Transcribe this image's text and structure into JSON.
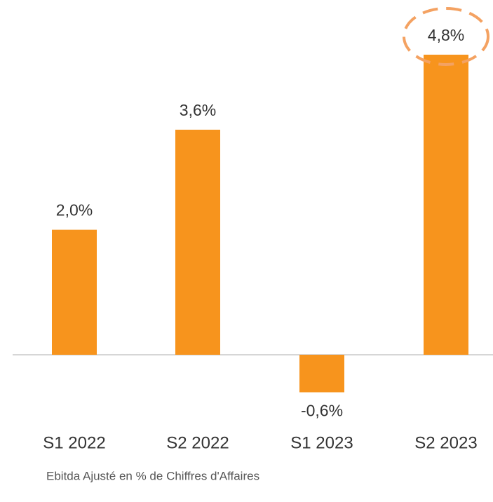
{
  "chart_data": {
    "type": "bar",
    "categories": [
      "S1 2022",
      "S2 2022",
      "S1 2023",
      "S2 2023"
    ],
    "values": [
      2.0,
      3.6,
      -0.6,
      4.8
    ],
    "value_labels": [
      "2,0%",
      "3,6%",
      "-0,6%",
      "4,8%"
    ],
    "color": "#f7941d",
    "caption": "Ebitda Ajusté en % de Chiffres d'Affaires"
  }
}
